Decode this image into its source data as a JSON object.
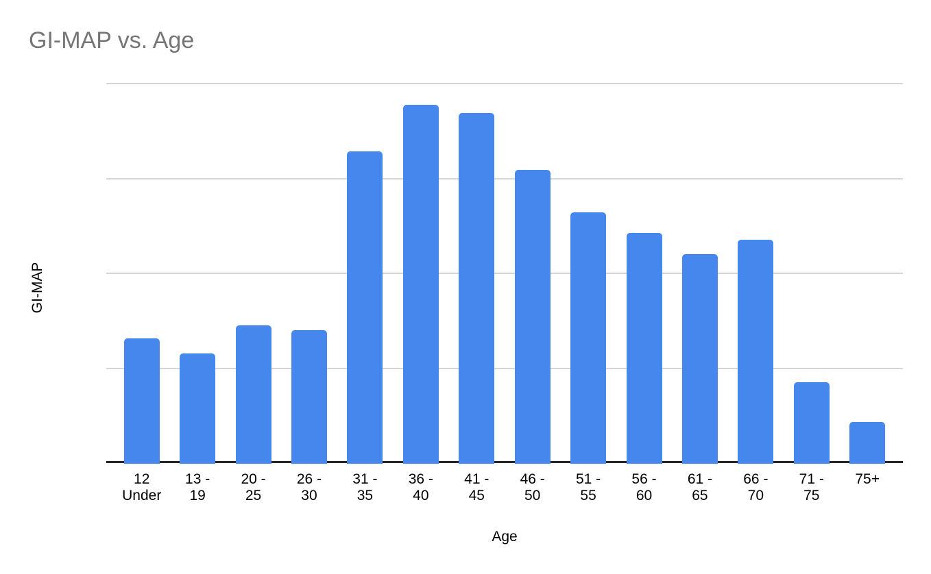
{
  "title": "GI-MAP vs. Age",
  "x_axis_title": "Age",
  "y_axis_title": "GI-MAP",
  "colors": {
    "bar": "#4687ee",
    "title_text": "#757575",
    "gridline": "#d5d5d5",
    "axis_line": "#262626",
    "label_text": "#000000",
    "background": "#ffffff"
  },
  "chart_data": {
    "type": "bar",
    "title": "GI-MAP vs. Age",
    "xlabel": "Age",
    "ylabel": "GI-MAP",
    "categories": [
      "12 Under",
      "13 - 19",
      "20 - 25",
      "26 - 30",
      "31 - 35",
      "36 - 40",
      "41 - 45",
      "46 - 50",
      "51 - 55",
      "56 - 60",
      "61 - 65",
      "66 - 70",
      "71 - 75",
      "75+"
    ],
    "category_label_lines": [
      "12\nUnder",
      "13 -\n19",
      "20 -\n25",
      "26 -\n30",
      "31 -\n35",
      "36 -\n40",
      "41 -\n45",
      "46 -\n50",
      "51 -\n55",
      "56 -\n60",
      "61 -\n65",
      "66 -\n70",
      "71 -\n75",
      "75+"
    ],
    "values": [
      13.2,
      11.6,
      14.6,
      14.1,
      32.9,
      37.8,
      37.0,
      31.0,
      26.5,
      24.3,
      22.1,
      23.6,
      8.6,
      4.4
    ],
    "ylim": [
      0,
      40
    ],
    "y_axis_tick_labels_visible": false,
    "gridline_interval": 10,
    "grid": true,
    "legend": "none",
    "bar_color": "#4687ee",
    "bar_corner_radius": 5
  }
}
